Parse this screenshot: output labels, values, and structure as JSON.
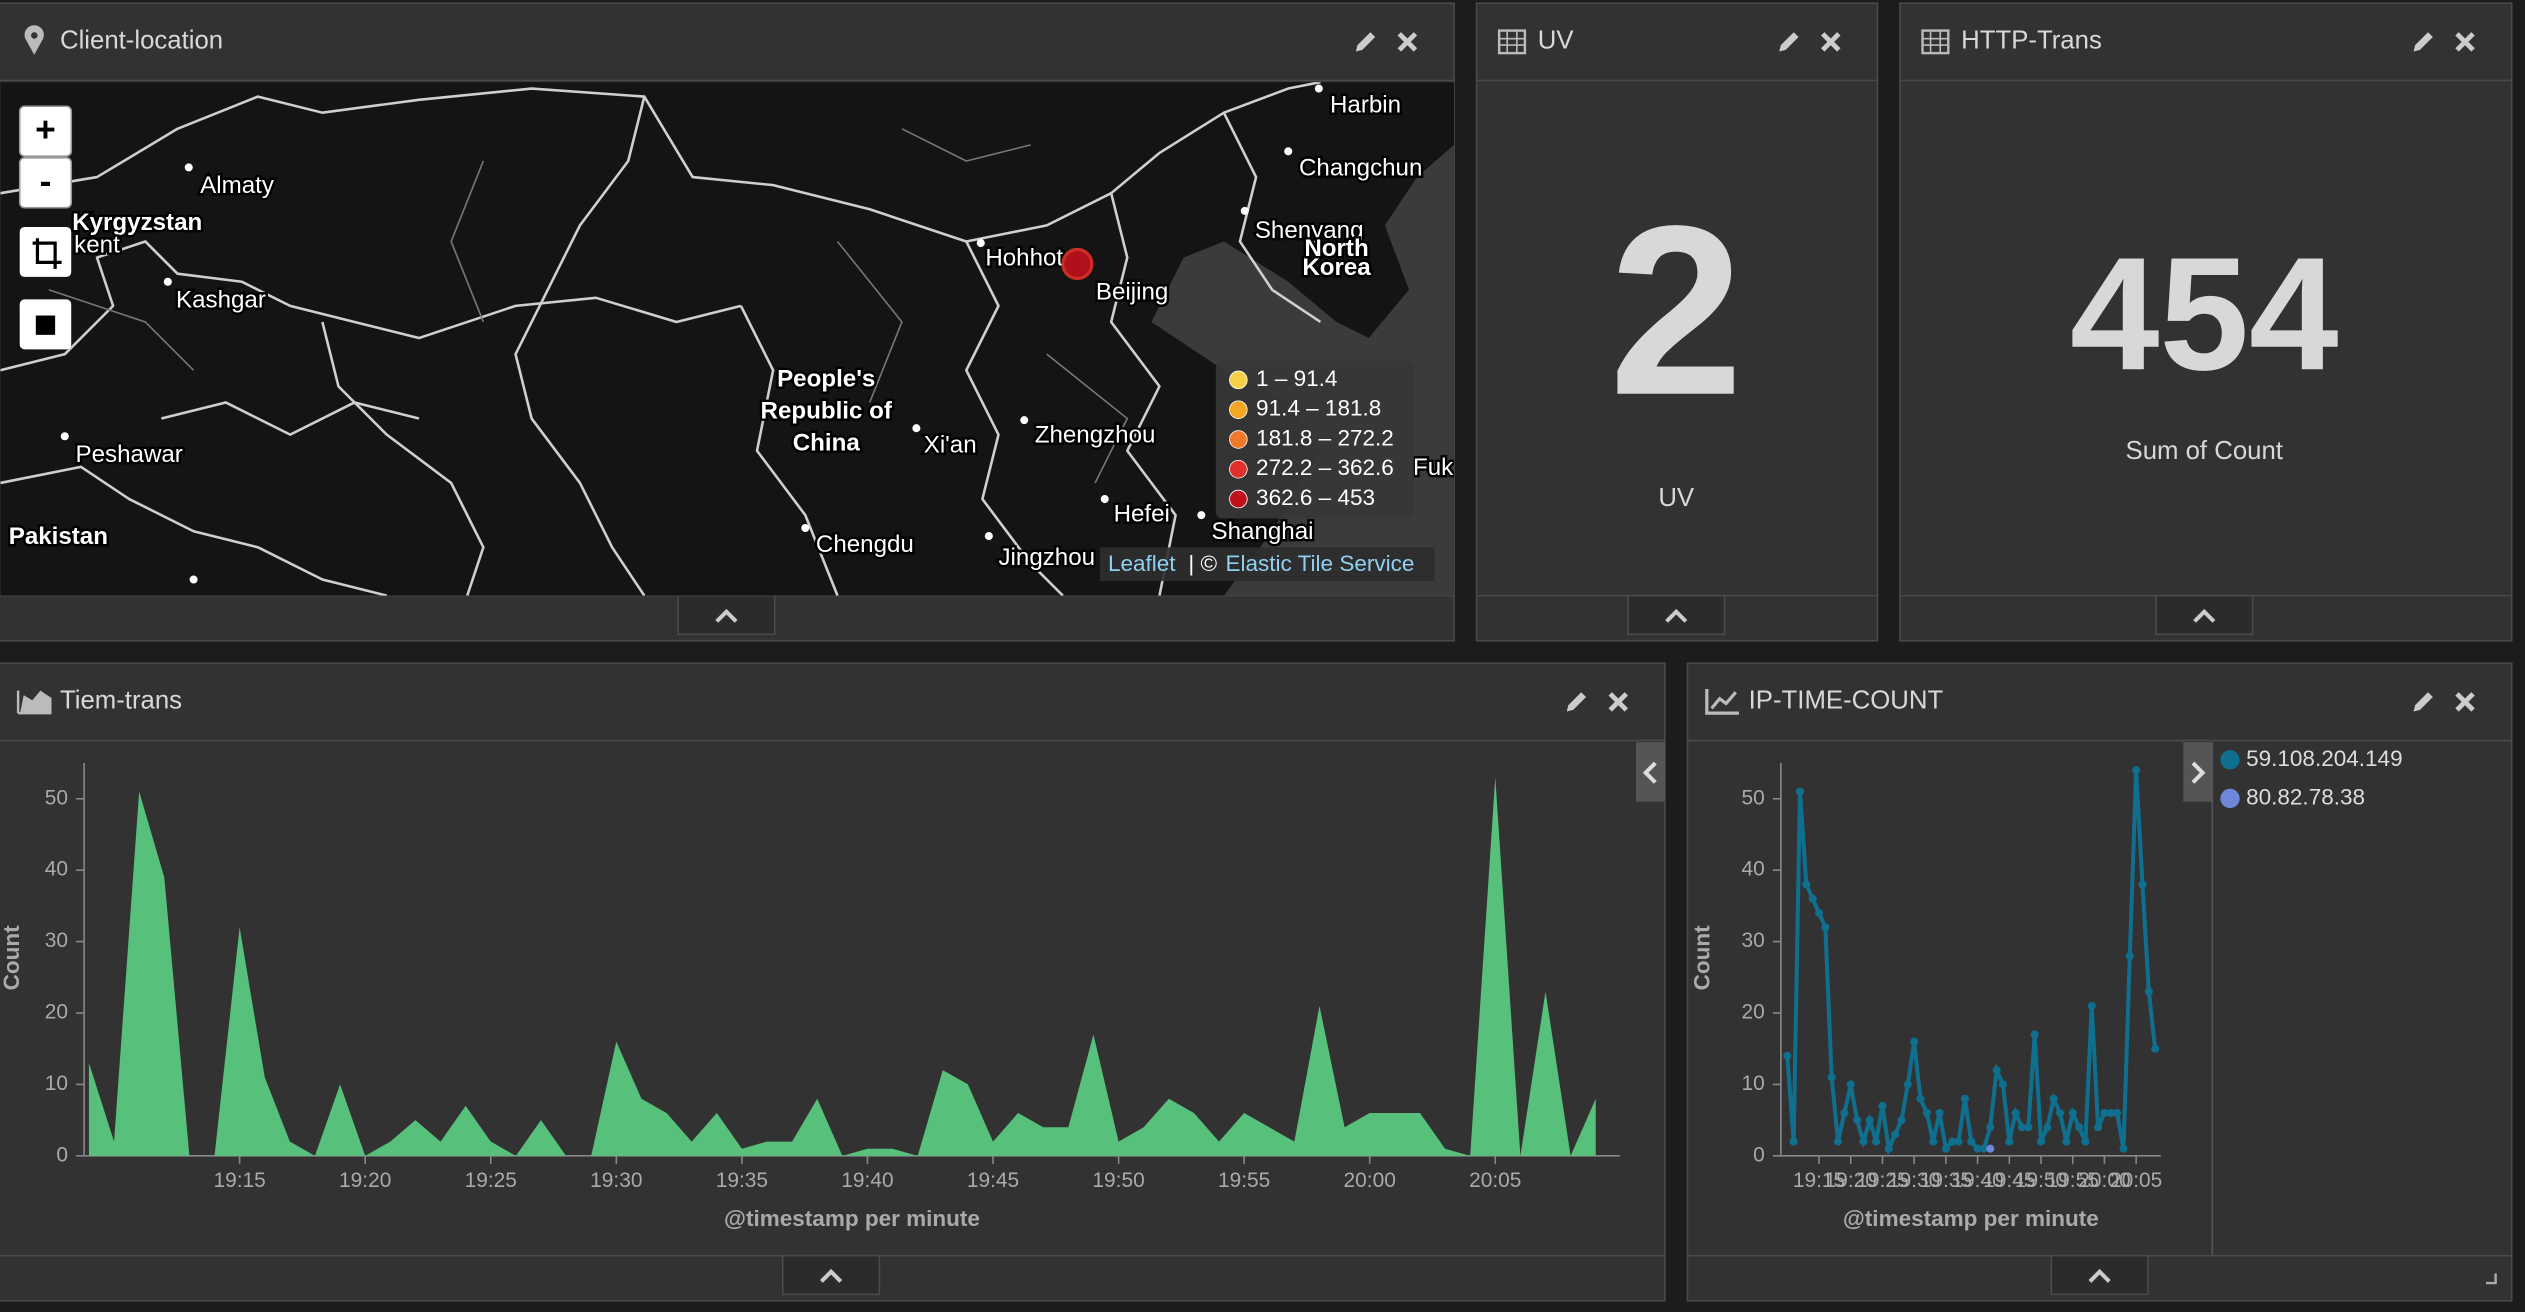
{
  "panels": [
    {
      "title": "Client-location",
      "map": {
        "zoom_in": "+",
        "zoom_out": "-",
        "labels": [
          "Harbin",
          "Changchun",
          "Shenyang",
          "North",
          "Korea",
          "Almaty",
          "Kyrgyzstan",
          "kent",
          "Kashgar",
          "Hohhot",
          "Beijing",
          "People's",
          "Republic of",
          "China",
          "Xi'an",
          "Zhengzhou",
          "Hefei",
          "Shanghai",
          "Fuk",
          "Peshawar",
          "Pakistan",
          "Chengdu",
          "Jingzhou"
        ],
        "legend": [
          {
            "label": "1 – 91.4",
            "color": "#f6d046"
          },
          {
            "label": "91.4 – 181.8",
            "color": "#f5a623"
          },
          {
            "label": "181.8 – 272.2",
            "color": "#f07a2a"
          },
          {
            "label": "272.2 – 362.6",
            "color": "#e2302a"
          },
          {
            "label": "362.6 – 453",
            "color": "#c0101c"
          }
        ],
        "attribution": {
          "leaflet": "Leaflet",
          "separator": "| ©",
          "service": "Elastic Tile Service"
        }
      }
    },
    {
      "title": "UV",
      "metric": {
        "value": 2,
        "label": "UV"
      }
    },
    {
      "title": "HTTP-Trans",
      "metric": {
        "value": 454,
        "label": "Sum of Count"
      }
    },
    {
      "title": "Tiem-trans",
      "chart": {
        "type": "area",
        "color": "#57c17b",
        "xlabel": "@timestamp per minute",
        "ylabel": "Count",
        "x": [
          "19:09",
          "19:10",
          "19:11",
          "19:12",
          "19:13",
          "19:14",
          "19:15",
          "19:16",
          "19:17",
          "19:18",
          "19:19",
          "19:20",
          "19:21",
          "19:22",
          "19:23",
          "19:24",
          "19:25",
          "19:26",
          "19:27",
          "19:28",
          "19:29",
          "19:30",
          "19:31",
          "19:32",
          "19:33",
          "19:34",
          "19:35",
          "19:36",
          "19:37",
          "19:38",
          "19:39",
          "19:40",
          "19:41",
          "19:42",
          "19:43",
          "19:44",
          "19:45",
          "19:46",
          "19:47",
          "19:48",
          "19:49",
          "19:50",
          "19:51",
          "19:52",
          "19:53",
          "19:54",
          "19:55",
          "19:56",
          "19:57",
          "19:58",
          "19:59",
          "20:00",
          "20:01",
          "20:02",
          "20:03",
          "20:04",
          "20:05",
          "20:06",
          "20:07",
          "20:08",
          "20:09"
        ],
        "values": [
          13,
          2,
          51,
          39,
          0,
          0,
          32,
          11,
          2,
          0,
          10,
          0,
          2,
          5,
          2,
          7,
          2,
          0,
          5,
          0,
          0,
          16,
          8,
          6,
          2,
          6,
          1,
          2,
          2,
          8,
          0,
          1,
          1,
          0,
          12,
          10,
          2,
          6,
          4,
          4,
          17,
          2,
          4,
          8,
          6,
          2,
          6,
          4,
          2,
          21,
          4,
          6,
          6,
          6,
          1,
          0,
          53,
          0,
          23,
          0,
          8
        ],
        "xticks": [
          "19:15",
          "19:20",
          "19:25",
          "19:30",
          "19:35",
          "19:40",
          "19:45",
          "19:50",
          "19:55",
          "20:00",
          "20:05"
        ],
        "ylim": [
          0,
          55
        ],
        "yticks": [
          0,
          10,
          20,
          30,
          40,
          50
        ]
      }
    },
    {
      "title": "IP-TIME-COUNT",
      "chart": {
        "type": "line",
        "xlabel": "@timestamp per minute",
        "ylabel": "Count",
        "x": [
          "19:10",
          "19:11",
          "19:12",
          "19:13",
          "19:14",
          "19:15",
          "19:16",
          "19:17",
          "19:18",
          "19:19",
          "19:20",
          "19:21",
          "19:22",
          "19:23",
          "19:24",
          "19:25",
          "19:26",
          "19:27",
          "19:28",
          "19:29",
          "19:30",
          "19:31",
          "19:32",
          "19:33",
          "19:34",
          "19:35",
          "19:36",
          "19:37",
          "19:38",
          "19:39",
          "19:40",
          "19:41",
          "19:42",
          "19:43",
          "19:44",
          "19:45",
          "19:46",
          "19:47",
          "19:48",
          "19:49",
          "19:50",
          "19:51",
          "19:52",
          "19:53",
          "19:54",
          "19:55",
          "19:56",
          "19:57",
          "19:58",
          "19:59",
          "20:00",
          "20:01",
          "20:02",
          "20:03",
          "20:04",
          "20:05",
          "20:06",
          "20:07",
          "20:08"
        ],
        "series": [
          {
            "name": "59.108.204.149",
            "color": "#0f6f8f",
            "values": [
              14,
              2,
              51,
              38,
              36,
              34,
              32,
              11,
              2,
              6,
              10,
              5,
              2,
              5,
              2,
              7,
              1,
              3,
              5,
              10,
              16,
              8,
              6,
              2,
              6,
              1,
              2,
              2,
              8,
              2,
              1,
              1,
              4,
              12,
              10,
              2,
              6,
              4,
              4,
              17,
              2,
              4,
              8,
              6,
              2,
              6,
              4,
              2,
              21,
              4,
              6,
              6,
              6,
              1,
              28,
              54,
              38,
              23,
              15
            ]
          },
          {
            "name": "80.82.78.38",
            "color": "#6f87d8",
            "values": [
              null,
              null,
              null,
              null,
              null,
              null,
              null,
              null,
              null,
              null,
              null,
              null,
              null,
              null,
              null,
              null,
              null,
              null,
              null,
              null,
              null,
              null,
              null,
              null,
              null,
              null,
              null,
              null,
              null,
              null,
              null,
              null,
              1,
              null,
              null,
              null,
              null,
              null,
              null,
              null,
              null,
              null,
              null,
              null,
              null,
              null,
              null,
              null,
              null,
              null,
              null,
              null,
              null,
              null,
              null,
              null,
              null,
              null,
              null
            ]
          }
        ],
        "xticks": [
          "19:15",
          "19:20",
          "19:25",
          "19:30",
          "19:35",
          "19:40",
          "19:45",
          "19:50",
          "19:55",
          "20:00",
          "20:05"
        ],
        "ylim": [
          0,
          55
        ],
        "yticks": [
          0,
          10,
          20,
          30,
          40,
          50
        ]
      }
    }
  ]
}
